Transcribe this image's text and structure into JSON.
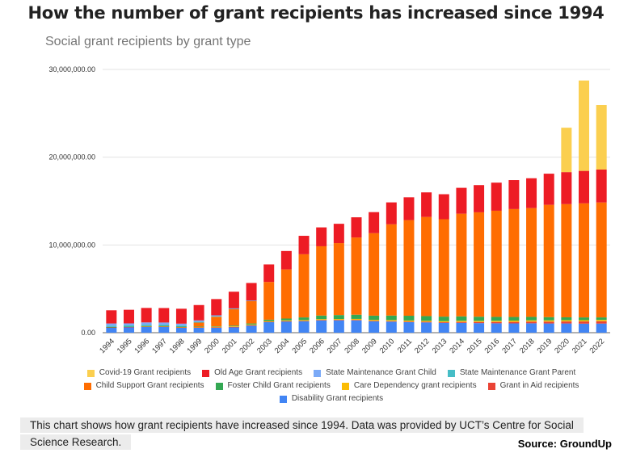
{
  "header": {
    "title": "How the number of grant recipients has increased since 1994",
    "subtitle": "Social grant recipients by grant type"
  },
  "caption": "This chart shows how grant recipients have increased since 1994. Data was provided by UCT’s Centre for Social Science Research.",
  "source": "Source: GroundUp",
  "chart_data": {
    "type": "bar",
    "stacked": true,
    "title": "Social grant recipients by grant type",
    "xlabel": "",
    "ylabel": "",
    "ylim": [
      0,
      30000000
    ],
    "yticks": [
      "0.00",
      "10,000,000.00",
      "20,000,000.00",
      "30,000,000.00"
    ],
    "ytick_values": [
      0,
      10000000,
      20000000,
      30000000
    ],
    "grid": true,
    "legend_position": "bottom",
    "categories": [
      "1994",
      "1995",
      "1996",
      "1997",
      "1998",
      "1999",
      "2000",
      "2001",
      "2002",
      "2003",
      "2004",
      "2005",
      "2006",
      "2007",
      "2008",
      "2009",
      "2010",
      "2011",
      "2012",
      "2013",
      "2014",
      "2015",
      "2016",
      "2017",
      "2018",
      "2019",
      "2020",
      "2021",
      "2022"
    ],
    "series": [
      {
        "name": "Disability Grant recipients",
        "color": "#4285f4",
        "values": [
          600000,
          650000,
          700000,
          700000,
          600000,
          600000,
          600000,
          650000,
          840000,
          1230000,
          1300000,
          1320000,
          1420000,
          1420000,
          1410000,
          1290000,
          1260000,
          1200000,
          1170000,
          1120000,
          1120000,
          1090000,
          1070000,
          1060000,
          1070000,
          1050000,
          1050000,
          1030000,
          1040000
        ]
      },
      {
        "name": "Grant in Aid recipients",
        "color": "#ea4335",
        "values": [
          10000,
          10000,
          10000,
          10000,
          10000,
          10000,
          10000,
          10000,
          10000,
          20000,
          20000,
          30000,
          30000,
          40000,
          50000,
          60000,
          60000,
          70000,
          70000,
          80000,
          110000,
          130000,
          150000,
          170000,
          190000,
          210000,
          230000,
          250000,
          260000
        ]
      },
      {
        "name": "Care Dependency grant recipients",
        "color": "#fbbc04",
        "values": [
          0,
          0,
          20000,
          30000,
          40000,
          50000,
          60000,
          70000,
          80000,
          80000,
          90000,
          90000,
          100000,
          100000,
          110000,
          110000,
          120000,
          120000,
          120000,
          120000,
          130000,
          130000,
          140000,
          150000,
          150000,
          150000,
          150000,
          150000,
          160000
        ]
      },
      {
        "name": "Foster Child Grant recipients",
        "color": "#34a853",
        "values": [
          40000,
          40000,
          40000,
          40000,
          40000,
          40000,
          50000,
          80000,
          120000,
          150000,
          200000,
          300000,
          400000,
          450000,
          480000,
          480000,
          510000,
          540000,
          530000,
          510000,
          500000,
          470000,
          440000,
          410000,
          390000,
          360000,
          320000,
          310000,
          280000
        ]
      },
      {
        "name": "Child Support Grant recipients",
        "color": "#ff6d01",
        "values": [
          0,
          0,
          0,
          0,
          0,
          450000,
          1100000,
          1900000,
          2600000,
          4300000,
          5600000,
          7200000,
          7900000,
          8200000,
          8800000,
          9400000,
          10400000,
          10900000,
          11300000,
          11100000,
          11700000,
          11900000,
          12100000,
          12300000,
          12400000,
          12800000,
          12900000,
          13000000,
          13100000
        ]
      },
      {
        "name": "State Maintenance Grant Parent",
        "color": "#46bdc6",
        "values": [
          150000,
          130000,
          140000,
          130000,
          120000,
          100000,
          60000,
          20000,
          5000,
          0,
          0,
          0,
          0,
          0,
          0,
          0,
          0,
          0,
          0,
          0,
          0,
          0,
          0,
          0,
          0,
          0,
          0,
          0,
          0
        ]
      },
      {
        "name": "State Maintenance Grant Child",
        "color": "#7baaf7",
        "values": [
          250000,
          230000,
          260000,
          250000,
          220000,
          150000,
          100000,
          40000,
          10000,
          0,
          0,
          0,
          0,
          0,
          0,
          0,
          0,
          0,
          0,
          0,
          0,
          0,
          0,
          0,
          0,
          0,
          0,
          0,
          0
        ]
      },
      {
        "name": "Old Age Grant recipients",
        "color": "#ed1c24",
        "values": [
          1500000,
          1550000,
          1650000,
          1650000,
          1700000,
          1750000,
          1850000,
          1900000,
          2000000,
          2000000,
          2100000,
          2100000,
          2150000,
          2200000,
          2300000,
          2400000,
          2500000,
          2600000,
          2800000,
          2850000,
          2950000,
          3100000,
          3200000,
          3300000,
          3400000,
          3550000,
          3650000,
          3700000,
          3750000
        ]
      },
      {
        "name": "Covid-19 Grant recipients",
        "color": "#fbcf4f",
        "values": [
          0,
          0,
          0,
          0,
          0,
          0,
          0,
          0,
          0,
          0,
          0,
          0,
          0,
          0,
          0,
          0,
          0,
          0,
          0,
          0,
          0,
          0,
          0,
          0,
          0,
          0,
          5060000,
          10300000,
          7360000
        ]
      }
    ],
    "legend_order": [
      "Covid-19 Grant recipients",
      "Old Age Grant recipients",
      "State Maintenance Grant Child",
      "State Maintenance Grant Parent",
      "Child Support Grant recipients",
      "Foster Child Grant recipients",
      "Care Dependency grant recipients",
      "Grant in Aid recipients",
      "Disability Grant recipients"
    ]
  }
}
